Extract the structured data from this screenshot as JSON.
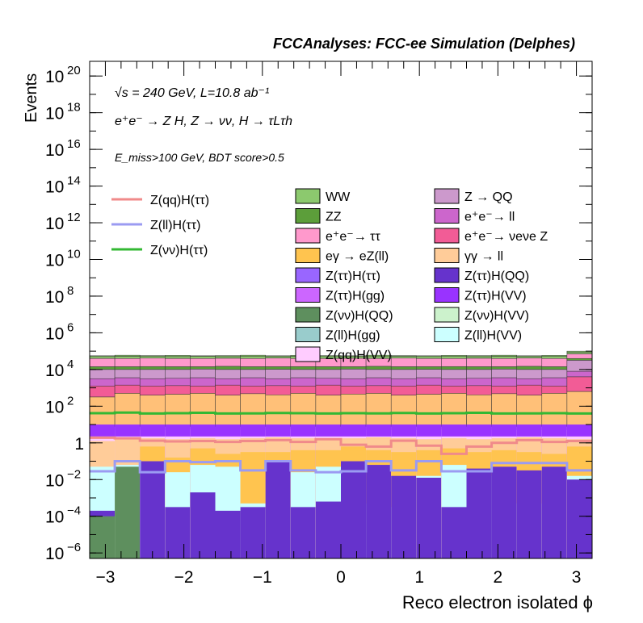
{
  "chart_data": {
    "type": "area",
    "title": "FCCAnalyses: FCC-ee Simulation (Delphes)",
    "xlabel": "Reco electron isolated ϕ",
    "ylabel": "Events",
    "xlim": [
      -3.2,
      3.2
    ],
    "ylim_log10": [
      -6.3,
      20.8
    ],
    "yscale": "log",
    "x_ticks": [
      "−3",
      "−2",
      "−1",
      "0",
      "1",
      "2",
      "3"
    ],
    "x_tick_values": [
      -3,
      -2,
      -1,
      0,
      1,
      2,
      3
    ],
    "y_ticks": [
      {
        "mant": "10",
        "exp": "−6",
        "log": -6
      },
      {
        "mant": "10",
        "exp": "−4",
        "log": -4
      },
      {
        "mant": "10",
        "exp": "−2",
        "log": -2
      },
      {
        "mant": "1",
        "exp": "",
        "log": 0
      },
      {
        "mant": "10",
        "exp": "2",
        "log": 2
      },
      {
        "mant": "10",
        "exp": "4",
        "log": 4
      },
      {
        "mant": "10",
        "exp": "6",
        "log": 6
      },
      {
        "mant": "10",
        "exp": "8",
        "log": 8
      },
      {
        "mant": "10",
        "exp": "10",
        "log": 10
      },
      {
        "mant": "10",
        "exp": "12",
        "log": 12
      },
      {
        "mant": "10",
        "exp": "14",
        "log": 14
      },
      {
        "mant": "10",
        "exp": "16",
        "log": 16
      },
      {
        "mant": "10",
        "exp": "18",
        "log": 18
      },
      {
        "mant": "10",
        "exp": "20",
        "log": 20
      }
    ],
    "annotations": {
      "energy": "√s = 240 GeV, L=10.8 ab⁻¹",
      "process": "e⁺e⁻ → Z H, Z → νν, H → τLτh",
      "cuts": "E_miss>100 GeV, BDT score>0.5"
    },
    "bins": 20,
    "line_series": [
      {
        "name": "Z(qq)H(ττ)",
        "color": "#f08a8a",
        "log_values": [
          0.28,
          0.25,
          0.12,
          0.08,
          0.1,
          0.05,
          0.1,
          0.15,
          0.05,
          0.2,
          -0.1,
          -0.2,
          0.12,
          -0.15,
          -0.6,
          -0.2,
          0.0,
          0.15,
          0.05,
          0.1
        ]
      },
      {
        "name": "Z(ll)H(ττ)",
        "color": "#9b9bf2",
        "log_values": [
          -1.55,
          -1.0,
          -1.6,
          -1.0,
          -1.05,
          -1.0,
          -1.5,
          -1.0,
          -1.5,
          -1.6,
          -1.55,
          -1.0,
          -1.5,
          -1.0,
          -1.55,
          -1.55,
          -1.1,
          -1.1,
          -1.1,
          -1.5
        ]
      },
      {
        "name": "Z(νν)H(ττ)",
        "color": "#33b833",
        "log_values": [
          1.62,
          1.65,
          1.6,
          1.62,
          1.64,
          1.6,
          1.61,
          1.63,
          1.62,
          1.6,
          1.62,
          1.61,
          1.63,
          1.6,
          1.62,
          1.64,
          1.6,
          1.61,
          1.62,
          1.6
        ]
      }
    ],
    "stack_bins": [
      [
        2.5,
        3.1,
        3.5,
        4.0,
        4.15,
        4.6,
        4.7,
        4.75
      ],
      [
        2.7,
        3.15,
        3.55,
        4.0,
        4.15,
        4.6,
        4.72,
        4.78
      ],
      [
        2.6,
        3.1,
        3.5,
        4.0,
        4.16,
        4.62,
        4.71,
        4.76
      ],
      [
        2.65,
        3.12,
        3.52,
        4.0,
        4.15,
        4.6,
        4.7,
        4.77
      ],
      [
        2.7,
        3.1,
        3.55,
        4.02,
        4.15,
        4.6,
        4.72,
        4.75
      ],
      [
        2.6,
        3.15,
        3.5,
        4.0,
        4.17,
        4.61,
        4.7,
        4.76
      ],
      [
        2.68,
        3.1,
        3.55,
        4.0,
        4.15,
        4.6,
        4.71,
        4.78
      ],
      [
        2.62,
        3.12,
        3.5,
        4.01,
        4.15,
        4.62,
        4.7,
        4.75
      ],
      [
        2.7,
        3.1,
        3.55,
        4.0,
        4.16,
        4.6,
        4.72,
        4.77
      ],
      [
        2.6,
        3.15,
        3.52,
        4.0,
        4.15,
        4.6,
        4.7,
        4.76
      ],
      [
        2.66,
        3.1,
        3.5,
        4.02,
        4.15,
        4.61,
        4.71,
        4.75
      ],
      [
        2.7,
        3.12,
        3.55,
        4.0,
        4.17,
        4.6,
        4.7,
        4.78
      ],
      [
        2.6,
        3.1,
        3.5,
        4.0,
        4.15,
        4.62,
        4.72,
        4.76
      ],
      [
        2.65,
        3.15,
        3.55,
        4.01,
        4.15,
        4.6,
        4.7,
        4.75
      ],
      [
        2.7,
        3.1,
        3.5,
        4.0,
        4.16,
        4.6,
        4.71,
        4.77
      ],
      [
        2.62,
        3.12,
        3.52,
        4.0,
        4.15,
        4.61,
        4.7,
        4.76
      ],
      [
        2.68,
        3.1,
        3.55,
        4.02,
        4.15,
        4.6,
        4.72,
        4.78
      ],
      [
        2.6,
        3.15,
        3.5,
        4.0,
        4.17,
        4.62,
        4.7,
        4.75
      ],
      [
        2.7,
        3.1,
        3.55,
        4.0,
        4.15,
        4.6,
        4.71,
        4.77
      ],
      [
        2.8,
        3.6,
        3.9,
        4.5,
        4.6,
        4.85,
        4.95,
        5.0
      ]
    ],
    "bottom_bins": [
      {
        "lo": [
          -2.2,
          0.1,
          0.6,
          1.0,
          1.2,
          1.35
        ],
        "purple": -3.7,
        "cyan": -1.3,
        "green": -4.0
      },
      {
        "lo": [
          -1.5,
          0.2,
          0.7,
          1.1,
          1.3,
          1.4
        ],
        "purple": -7,
        "cyan": -1.2,
        "green": -1.3
      },
      {
        "lo": [
          -0.2,
          0.25,
          0.7,
          1.05,
          1.25,
          1.4
        ],
        "purple": -1.0,
        "cyan": -1.0,
        "green": -9
      },
      {
        "lo": [
          -0.8,
          0.2,
          0.7,
          1.1,
          1.3,
          1.4
        ],
        "purple": -3.5,
        "cyan": -1.6,
        "green": -9
      },
      {
        "lo": [
          -0.3,
          0.25,
          0.75,
          1.1,
          1.3,
          1.4
        ],
        "purple": -2.7,
        "cyan": -1.2,
        "green": -9
      },
      {
        "lo": [
          -0.6,
          0.2,
          0.7,
          1.05,
          1.25,
          1.4
        ],
        "purple": -3.7,
        "cyan": -1.3,
        "green": -9
      },
      {
        "lo": [
          -0.5,
          0.25,
          0.7,
          1.1,
          1.3,
          1.4
        ],
        "purple": -3.5,
        "cyan": -3.3,
        "green": -9
      },
      {
        "lo": [
          -0.5,
          0.3,
          0.7,
          1.1,
          1.3,
          1.4
        ],
        "purple": -1.0,
        "cyan": -3.6,
        "green": -9
      },
      {
        "lo": [
          -0.4,
          0.25,
          0.75,
          1.1,
          1.3,
          1.4
        ],
        "purple": -3.5,
        "cyan": -1.6,
        "green": -9
      },
      {
        "lo": [
          -0.4,
          0.2,
          0.7,
          1.05,
          1.25,
          1.4
        ],
        "purple": -3.2,
        "cyan": -1.3,
        "green": -9
      },
      {
        "lo": [
          -0.2,
          0.25,
          0.7,
          1.1,
          1.3,
          1.4
        ],
        "purple": -1.0,
        "cyan": -3.2,
        "green": -9
      },
      {
        "lo": [
          -0.4,
          0.3,
          0.7,
          1.1,
          1.3,
          1.4
        ],
        "purple": -1.2,
        "cyan": -3.3,
        "green": -9
      },
      {
        "lo": [
          -0.5,
          0.25,
          0.7,
          1.1,
          1.3,
          1.4
        ],
        "purple": -1.8,
        "cyan": -3.5,
        "green": -9
      },
      {
        "lo": [
          -0.4,
          0.2,
          0.7,
          1.05,
          1.25,
          1.4
        ],
        "purple": -1.9,
        "cyan": -1.8,
        "green": -9
      },
      {
        "lo": [
          -0.3,
          0.25,
          0.75,
          1.1,
          1.3,
          1.4
        ],
        "purple": -3.5,
        "cyan": -1.2,
        "green": -9
      },
      {
        "lo": [
          -0.5,
          0.2,
          0.7,
          1.1,
          1.3,
          1.4
        ],
        "purple": -1.4,
        "cyan": -1.8,
        "green": -9
      },
      {
        "lo": [
          -0.4,
          0.25,
          0.7,
          1.05,
          1.25,
          1.4
        ],
        "purple": -1.3,
        "cyan": -1.8,
        "green": -9
      },
      {
        "lo": [
          -0.5,
          0.3,
          0.7,
          1.1,
          1.3,
          1.4
        ],
        "purple": -1.5,
        "cyan": -3.3,
        "green": -9
      },
      {
        "lo": [
          -0.6,
          0.25,
          0.7,
          1.1,
          1.3,
          1.4
        ],
        "purple": -1.3,
        "cyan": -3.3,
        "green": -9
      },
      {
        "lo": [
          -0.2,
          0.2,
          0.7,
          1.05,
          1.25,
          1.4
        ],
        "purple": -2.0,
        "cyan": -1.8,
        "green": -9
      }
    ],
    "stack_colors": [
      "#ffc078",
      "#f25c96",
      "#cc66cc",
      "#cc99cc",
      "#5c9e3a",
      "#ff99cc",
      "#8cc96e",
      "#8cc96e"
    ],
    "legend_col1": [
      {
        "label": "WW",
        "color": "#8cc96e"
      },
      {
        "label": "ZZ",
        "color": "#5c9e3a"
      },
      {
        "label": "e⁺e⁻→ ττ",
        "color": "#ff99cc"
      },
      {
        "label": "eγ → eZ(ll)",
        "color": "#ffc44f"
      },
      {
        "label": "Z(ττ)H(ττ)",
        "color": "#9966ff"
      },
      {
        "label": "Z(ττ)H(gg)",
        "color": "#cc66ff"
      },
      {
        "label": "Z(νν)H(QQ)",
        "color": "#5e8f5e"
      },
      {
        "label": "Z(ll)H(gg)",
        "color": "#99cccc"
      },
      {
        "label": "Z(qq)H(VV)",
        "color": "#ffccff"
      }
    ],
    "legend_col2": [
      {
        "label": "Z → QQ",
        "color": "#cc99cc"
      },
      {
        "label": "e⁺e⁻→ ll",
        "color": "#cc66cc"
      },
      {
        "label": "e⁺e⁻→ νeνe Z",
        "color": "#f25c96"
      },
      {
        "label": "γγ → ll",
        "color": "#ffcc99"
      },
      {
        "label": "Z(ττ)H(QQ)",
        "color": "#6633cc"
      },
      {
        "label": "Z(ττ)H(VV)",
        "color": "#9933ff"
      },
      {
        "label": "Z(νν)H(VV)",
        "color": "#ccf2cc"
      },
      {
        "label": "Z(ll)H(VV)",
        "color": "#ccffff"
      }
    ]
  }
}
